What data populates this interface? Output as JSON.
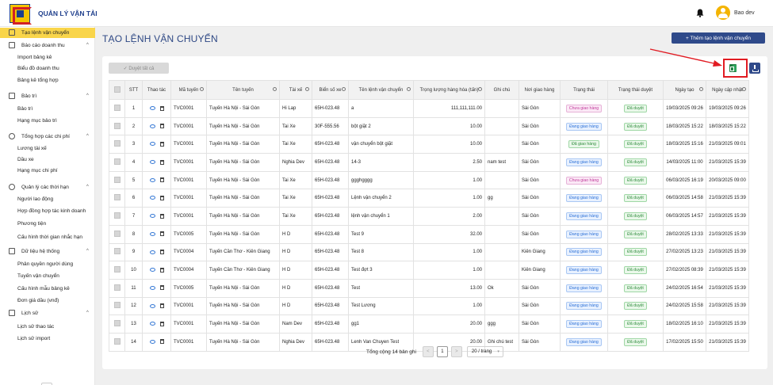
{
  "header": {
    "app_title": "QUẢN LÝ VẬN TẢI",
    "user_name": "Bao dev"
  },
  "sidebar": {
    "menu": [
      {
        "label": "Tạo lệnh vận chuyển",
        "active": true,
        "icon": "box-icon"
      },
      {
        "label": "Báo cáo doanh thu",
        "icon": "chart-icon",
        "chevron": "^",
        "children": [
          "Import bảng kê",
          "Biểu đồ doanh thu",
          "Bảng kê tổng hợp"
        ]
      },
      {
        "label": "Bảo trì",
        "icon": "wrench-icon",
        "chevron": "^",
        "children": [
          "Bảo trì",
          "Hạng mục bảo trì"
        ]
      },
      {
        "label": "Tổng hợp các chi phí",
        "icon": "dollar-icon",
        "chevron": "^",
        "children": [
          "Lương tài xế",
          "Dầu xe",
          "Hạng mục chi phí"
        ]
      },
      {
        "label": "Quản lý các thời hạn",
        "icon": "clock-icon",
        "chevron": "^",
        "children": [
          "Người lao động",
          "Hợp đồng hợp tác kinh doanh",
          "Phương tiện",
          "Cấu hình thời gian nhắc hạn"
        ]
      },
      {
        "label": "Dữ liệu hệ thống",
        "icon": "database-icon",
        "chevron": "^",
        "children": [
          "Phân quyền người dùng",
          "Tuyến vận chuyển",
          "Cấu hình mẫu bảng kê",
          "Đơn giá dầu (vnđ)"
        ]
      },
      {
        "label": "Lịch sử",
        "icon": "history-icon",
        "chevron": "^",
        "children": [
          "Lịch sử thao tác",
          "Lịch sử import"
        ]
      }
    ],
    "collapse_icon": "◂"
  },
  "main": {
    "page_title": "TẠO LỆNH VẬN CHUYỂN",
    "add_button": "+ Thêm tạo lệnh vận chuyển",
    "approve_all": "✓ Duyệt tất cả"
  },
  "table": {
    "headers": [
      "STT",
      "Thao tác",
      "Mã tuyến",
      "Tên tuyến",
      "Tài xế",
      "Biển số xe",
      "Tên lệnh vận chuyển",
      "Trọng lượng hàng hóa (tấn)",
      "Ghi chú",
      "Nơi giao hàng",
      "Trạng thái",
      "Trạng thái duyệt",
      "Ngày tạo",
      "Ngày cập nhật"
    ],
    "rows": [
      {
        "stt": "1",
        "ma": "TVC0001",
        "ten": "Tuyến Hà Nội - Sài Gòn",
        "taixe": "Hi Lap",
        "bienso": "65H-023.48",
        "lenh": "a",
        "tl": "111,111,111.00",
        "ghichu": "",
        "noi": "Sài Gòn",
        "tt": "Chưa giao hàng",
        "tt_color": "pink",
        "duyet": "Đã duyệt",
        "tao": "19/03/2025 09:26",
        "capnhat": "19/03/2025 09:26"
      },
      {
        "stt": "2",
        "ma": "TVC0001",
        "ten": "Tuyến Hà Nội - Sài Gòn",
        "taixe": "Tai Xe",
        "bienso": "30F-555.56",
        "lenh": "bột giặt 2",
        "tl": "10.00",
        "ghichu": "",
        "noi": "Sài Gòn",
        "tt": "Đang giao hàng",
        "tt_color": "blue",
        "duyet": "Đã duyệt",
        "tao": "18/03/2025 15:22",
        "capnhat": "18/03/2025 15:22"
      },
      {
        "stt": "3",
        "ma": "TVC0001",
        "ten": "Tuyến Hà Nội - Sài Gòn",
        "taixe": "Tai Xe",
        "bienso": "65H-023.48",
        "lenh": "vận chuyển bột giặt",
        "tl": "10.00",
        "ghichu": "",
        "noi": "Sài Gòn",
        "tt": "Đã giao hàng",
        "tt_color": "green",
        "duyet": "Đã duyệt",
        "tao": "18/03/2025 15:16",
        "capnhat": "21/03/2025 09:01"
      },
      {
        "stt": "4",
        "ma": "TVC0001",
        "ten": "Tuyến Hà Nội - Sài Gòn",
        "taixe": "Nghia Dev",
        "bienso": "65H-023.48",
        "lenh": "14-3",
        "tl": "2.50",
        "ghichu": "nam test",
        "noi": "Sài Gòn",
        "tt": "Đang giao hàng",
        "tt_color": "blue",
        "duyet": "Đã duyệt",
        "tao": "14/03/2025 11:00",
        "capnhat": "21/03/2025 15:39"
      },
      {
        "stt": "5",
        "ma": "TVC0001",
        "ten": "Tuyến Hà Nội - Sài Gòn",
        "taixe": "Tai Xe",
        "bienso": "65H-023.48",
        "lenh": "ggghgggg",
        "tl": "1.00",
        "ghichu": "",
        "noi": "Sài Gòn",
        "tt": "Chưa giao hàng",
        "tt_color": "pink",
        "duyet": "Đã duyệt",
        "tao": "06/03/2025 16:19",
        "capnhat": "20/03/2025 09:00"
      },
      {
        "stt": "6",
        "ma": "TVC0001",
        "ten": "Tuyến Hà Nội - Sài Gòn",
        "taixe": "Tai Xe",
        "bienso": "65H-023.48",
        "lenh": "Lệnh vận chuyển 2",
        "tl": "1.00",
        "ghichu": "gg",
        "noi": "Sài Gòn",
        "tt": "Đang giao hàng",
        "tt_color": "blue",
        "duyet": "Đã duyệt",
        "tao": "06/03/2025 14:58",
        "capnhat": "21/03/2025 15:39"
      },
      {
        "stt": "7",
        "ma": "TVC0001",
        "ten": "Tuyến Hà Nội - Sài Gòn",
        "taixe": "Tai Xe",
        "bienso": "65H-023.48",
        "lenh": "lệnh vận chuyển 1",
        "tl": "2.00",
        "ghichu": "",
        "noi": "Sài Gòn",
        "tt": "Đang giao hàng",
        "tt_color": "blue",
        "duyet": "Đã duyệt",
        "tao": "06/03/2025 14:57",
        "capnhat": "21/03/2025 15:39"
      },
      {
        "stt": "8",
        "ma": "TVC0005",
        "ten": "Tuyến Hà Nội - Sài Gòn",
        "taixe": "H D",
        "bienso": "65H-023.48",
        "lenh": "Test 9",
        "tl": "32.00",
        "ghichu": "",
        "noi": "Sài Gòn",
        "tt": "Đang giao hàng",
        "tt_color": "blue",
        "duyet": "Đã duyệt",
        "tao": "28/02/2025 13:33",
        "capnhat": "21/03/2025 15:39"
      },
      {
        "stt": "9",
        "ma": "TVC0004",
        "ten": "Tuyến Cần Thơ - Kiên Giang",
        "taixe": "H D",
        "bienso": "65H-023.48",
        "lenh": "Test 8",
        "tl": "1.00",
        "ghichu": "",
        "noi": "Kiên Giang",
        "tt": "Đang giao hàng",
        "tt_color": "blue",
        "duyet": "Đã duyệt",
        "tao": "27/02/2025 13:23",
        "capnhat": "21/03/2025 15:39"
      },
      {
        "stt": "10",
        "ma": "TVC0004",
        "ten": "Tuyến Cần Thơ - Kiên Giang",
        "taixe": "H D",
        "bienso": "65H-023.48",
        "lenh": "Test đợt 3",
        "tl": "1.00",
        "ghichu": "",
        "noi": "Kiên Giang",
        "tt": "Đang giao hàng",
        "tt_color": "blue",
        "duyet": "Đã duyệt",
        "tao": "27/02/2025 08:39",
        "capnhat": "21/03/2025 15:39"
      },
      {
        "stt": "11",
        "ma": "TVC0005",
        "ten": "Tuyến Hà Nội - Sài Gòn",
        "taixe": "H D",
        "bienso": "65H-023.48",
        "lenh": "Test",
        "tl": "13.00",
        "ghichu": "Ok",
        "noi": "Sài Gòn",
        "tt": "Đang giao hàng",
        "tt_color": "blue",
        "duyet": "Đã duyệt",
        "tao": "24/02/2025 16:54",
        "capnhat": "21/03/2025 15:39"
      },
      {
        "stt": "12",
        "ma": "TVC0001",
        "ten": "Tuyến Hà Nội - Sài Gòn",
        "taixe": "H D",
        "bienso": "65H-023.48",
        "lenh": "Test Lương",
        "tl": "1.00",
        "ghichu": "",
        "noi": "Sài Gòn",
        "tt": "Đang giao hàng",
        "tt_color": "blue",
        "duyet": "Đã duyệt",
        "tao": "24/02/2025 15:58",
        "capnhat": "21/03/2025 15:39"
      },
      {
        "stt": "13",
        "ma": "TVC0001",
        "ten": "Tuyến Hà Nội - Sài Gòn",
        "taixe": "Nam Dev",
        "bienso": "65H-023.48",
        "lenh": "gg1",
        "tl": "20.00",
        "ghichu": "ggg",
        "noi": "Sài Gòn",
        "tt": "Đang giao hàng",
        "tt_color": "blue",
        "duyet": "Đã duyệt",
        "tao": "18/02/2025 16:10",
        "capnhat": "21/03/2025 15:39"
      },
      {
        "stt": "14",
        "ma": "TVC0001",
        "ten": "Tuyến Hà Nội - Sài Gòn",
        "taixe": "Nghia Dev",
        "bienso": "65H-023.48",
        "lenh": "Lenh Van Chuyen Test",
        "tl": "20.00",
        "ghichu": "Ghi chú test",
        "noi": "Sài Gòn",
        "tt": "Đang giao hàng",
        "tt_color": "blue",
        "duyet": "Đã duyệt",
        "tao": "17/02/2025 15:50",
        "capnhat": "21/03/2025 15:39"
      }
    ]
  },
  "pagination": {
    "total_text": "Tổng cộng 14 bản ghi",
    "prev": "<",
    "current_page": "1",
    "next": ">",
    "page_size": "20 / trang"
  },
  "annotation": {
    "color": "#e11b22"
  }
}
